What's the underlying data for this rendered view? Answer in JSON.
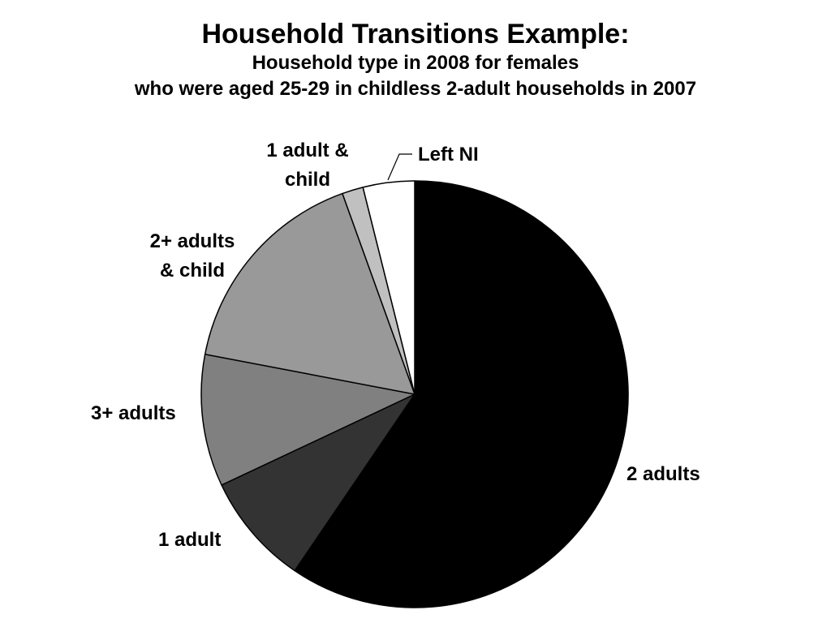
{
  "chart_data": {
    "type": "pie",
    "title": "Household Transitions Example:",
    "subtitle": [
      "Household type in 2008 for females",
      "who were aged 25-29 in childless 2-adult households in 2007"
    ],
    "slices": [
      {
        "name": "2 adults",
        "value": 59.5,
        "color": "#000000",
        "label_lines": [
          "2 adults"
        ]
      },
      {
        "name": "1 adult",
        "value": 8.5,
        "color": "#333333",
        "label_lines": [
          "1 adult"
        ]
      },
      {
        "name": "3+ adults",
        "value": 10.0,
        "color": "#808080",
        "label_lines": [
          "3+ adults"
        ]
      },
      {
        "name": "2+ adults & child",
        "value": 16.5,
        "color": "#999999",
        "label_lines": [
          "2+ adults",
          "& child"
        ]
      },
      {
        "name": "1 adult & child",
        "value": 1.6,
        "color": "#c0c0c0",
        "label_lines": [
          "1 adult &",
          "child"
        ]
      },
      {
        "name": "Left NI",
        "value": 3.9,
        "color": "#ffffff",
        "label_lines": [
          "Left NI"
        ]
      }
    ],
    "start_angle_deg": 0,
    "direction": "clockwise",
    "legend": "none",
    "stroke_color": "#000000"
  }
}
